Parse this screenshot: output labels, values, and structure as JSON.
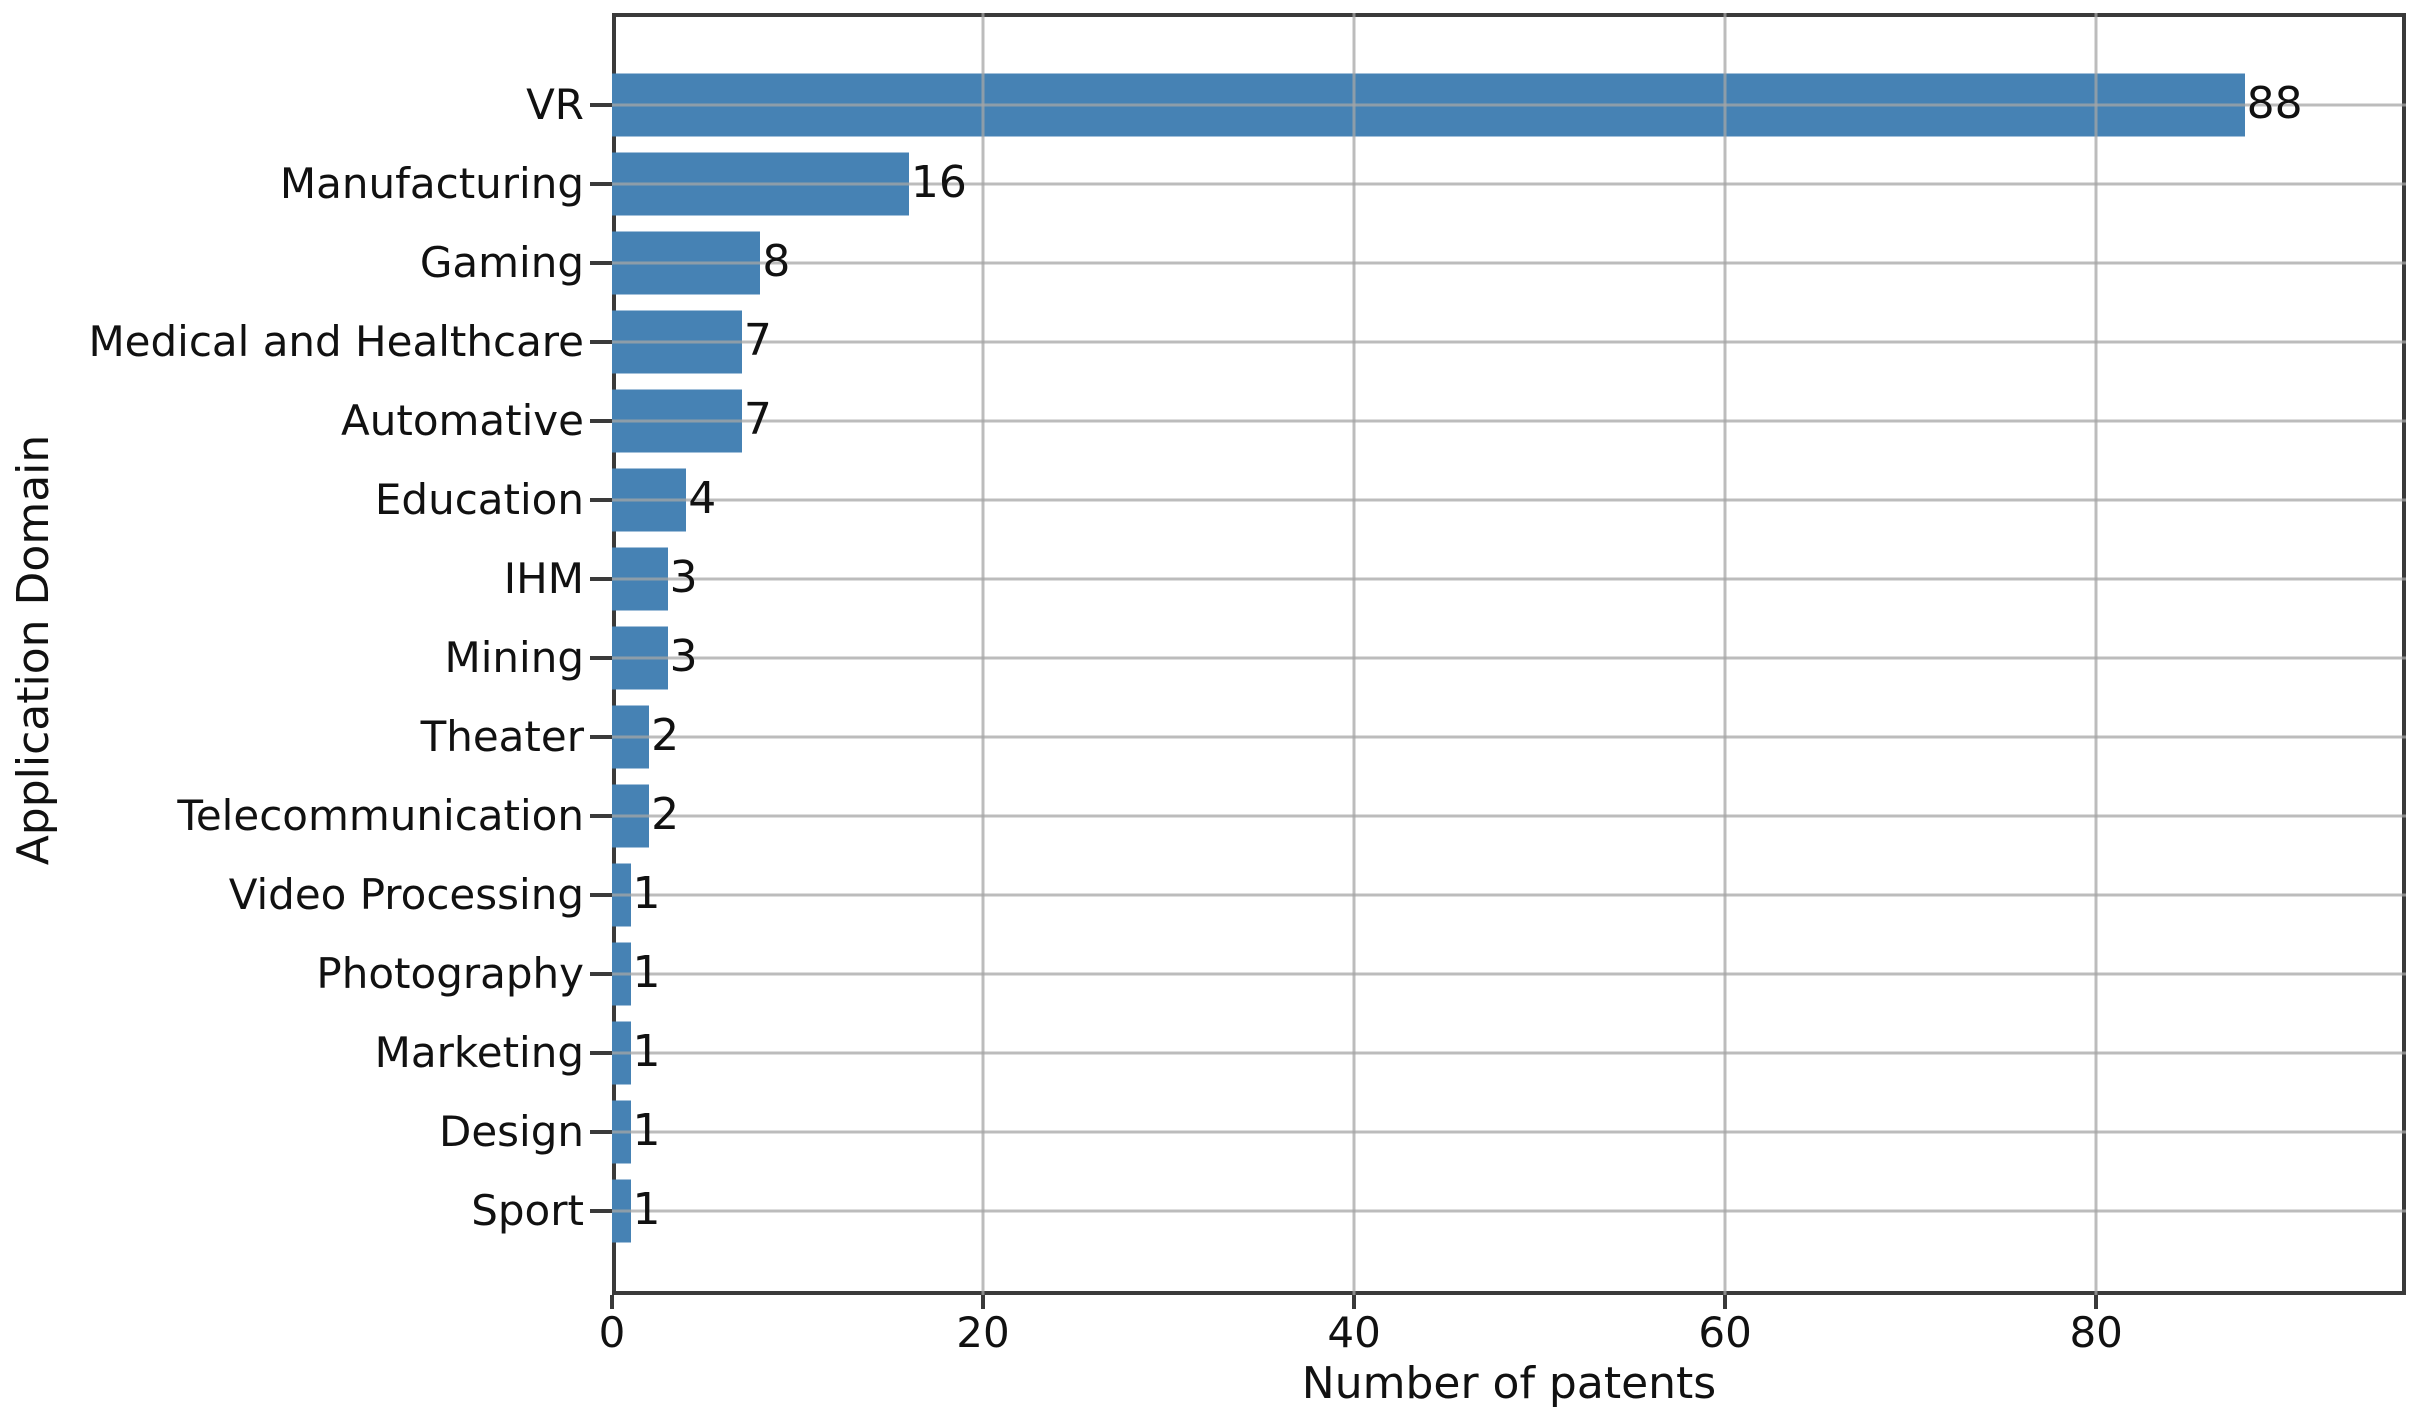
{
  "chart_data": {
    "type": "bar",
    "orientation": "horizontal",
    "title": "",
    "xlabel": "Number of patents",
    "ylabel": "Application Domain",
    "categories": [
      "VR",
      "Manufacturing",
      "Gaming",
      "Medical and Healthcare",
      "Automative",
      "Education",
      "IHM",
      "Mining",
      "Theater",
      "Telecommunication",
      "Video Processing",
      "Photography",
      "Marketing",
      "Design",
      "Sport"
    ],
    "values": [
      88,
      16,
      8,
      7,
      7,
      4,
      3,
      3,
      2,
      2,
      1,
      1,
      1,
      1,
      1
    ],
    "x_ticks": [
      0,
      20,
      40,
      60,
      80
    ],
    "xlim": [
      0,
      96.7
    ],
    "grid": true,
    "legend": false,
    "bar_labels_shown": true,
    "bar_color": "#4682b4",
    "gridline_color": "rgba(165,165,165,0.75)",
    "spine_color": "#3a3a3a",
    "text_color": "#111111"
  }
}
